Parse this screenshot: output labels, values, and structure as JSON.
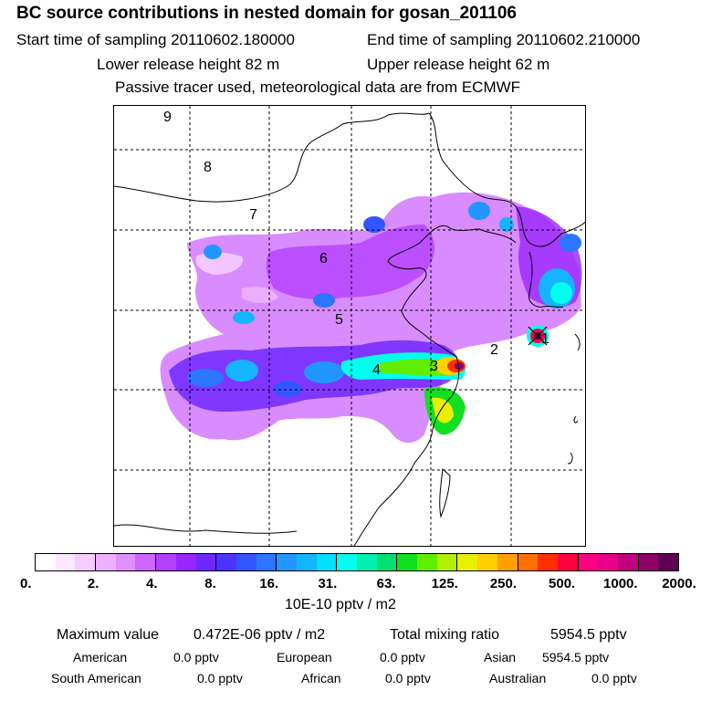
{
  "header": {
    "title": "BC  source contributions in nested domain for gosan_201106",
    "start_label": "Start time of sampling 20110602.180000",
    "end_label": "End time of sampling 20110602.210000",
    "lower_label": "Lower release height   82 m",
    "upper_label": "Upper release height   62 m",
    "tracer_label": "Passive tracer used, meteorological data are from ECMWF"
  },
  "map": {
    "markers": [
      "1",
      "2",
      "3",
      "4",
      "5",
      "6",
      "7",
      "8",
      "9"
    ]
  },
  "colorbar": {
    "colors": [
      "#ffffff",
      "#fbe8ff",
      "#f5ccff",
      "#edafff",
      "#e08fff",
      "#cc66ff",
      "#b340ff",
      "#9926ff",
      "#6e28ff",
      "#4d33ff",
      "#3355ff",
      "#2b75ff",
      "#2196ff",
      "#14b4ff",
      "#00e0ff",
      "#00ffee",
      "#00f0b0",
      "#00e070",
      "#10e020",
      "#60ee00",
      "#b0f000",
      "#e8f000",
      "#ffd000",
      "#ffa000",
      "#ff7000",
      "#ff3000",
      "#ff0040",
      "#ff0080",
      "#e8008a",
      "#c00080",
      "#900068",
      "#600050"
    ],
    "ticks": [
      "0.",
      "2.",
      "4.",
      "8.",
      "16.",
      "31.",
      "63.",
      "125.",
      "250.",
      "500.",
      "1000.",
      "2000."
    ],
    "units": "10E-10 pptv / m2"
  },
  "stats": {
    "max_label": "Maximum value",
    "max_value": "0.472E-06 pptv / m2",
    "total_label": "Total mixing ratio",
    "total_value": "5954.5 pptv",
    "regions": [
      {
        "name": "American",
        "value": "0.0 pptv"
      },
      {
        "name": "European",
        "value": "0.0 pptv"
      },
      {
        "name": "Asian",
        "value": "5954.5 pptv"
      },
      {
        "name": "South American",
        "value": "0.0 pptv"
      },
      {
        "name": "African",
        "value": "0.0 pptv"
      },
      {
        "name": "Australian",
        "value": "0.0 pptv"
      }
    ]
  }
}
